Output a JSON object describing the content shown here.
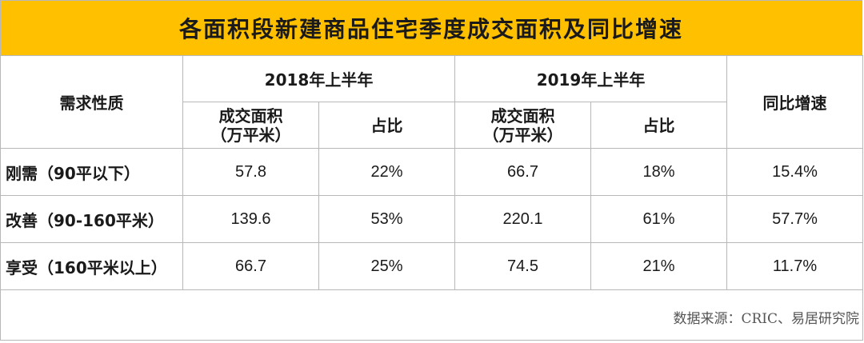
{
  "title": "各面积段新建商品住宅季度成交面积及同比增速",
  "headers": {
    "nature": "需求性质",
    "period_2018": "2018年上半年",
    "period_2019": "2019年上半年",
    "yoy": "同比增速",
    "area_line1": "成交面积",
    "area_line2": "（万平米）",
    "share": "占比"
  },
  "rows": [
    {
      "label": "刚需（90平以下）",
      "area_2018": "57.8",
      "share_2018": "22%",
      "area_2019": "66.7",
      "share_2019": "18%",
      "yoy": "15.4%"
    },
    {
      "label": "改善（90-160平米）",
      "area_2018": "139.6",
      "share_2018": "53%",
      "area_2019": "220.1",
      "share_2019": "61%",
      "yoy": "57.7%"
    },
    {
      "label": "享受（160平米以上）",
      "area_2018": "66.7",
      "share_2018": "25%",
      "area_2019": "74.5",
      "share_2019": "21%",
      "yoy": "11.7%"
    }
  ],
  "source": "数据来源：CRIC、易居研究院",
  "colors": {
    "title_bg": "#ffc000",
    "border": "#b8b8b8"
  }
}
